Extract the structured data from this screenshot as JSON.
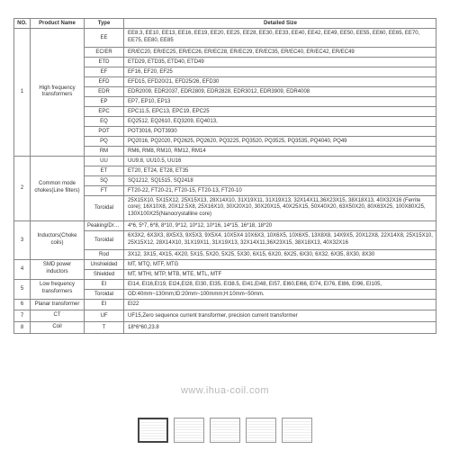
{
  "header": {
    "no": "NO.",
    "name": "Product Name",
    "type": "Type",
    "detail": "Detailed Size"
  },
  "rows": [
    {
      "no": "1",
      "name": "High frequency transformers",
      "types": [
        {
          "type": "EE",
          "detail": "EE8.3, EE10, EE13, EE16, EE19, EE20, EE25, EE28, EE30, EE33, EE40, EE42, EE49, EE50, EE55, EE60, EE65, EE70, EE75, EE80, EE85"
        },
        {
          "type": "EC/ER",
          "detail": "ER/EC20, ER/EC25, ER/EC26, ER/EC28, ER/EC29, ER/EC35, ER/EC40, ER/EC42, ER/EC49"
        },
        {
          "type": "ETD",
          "detail": "ETD29, ETD35, ETD40, ETD49"
        },
        {
          "type": "EF",
          "detail": "EF16, EF20, EF25"
        },
        {
          "type": "EFD",
          "detail": "EFD15, EFD20/21, EFD25/26, EFD30"
        },
        {
          "type": "EDR",
          "detail": "EDR2009, EDR2037, EDR2809, EDR2828, EDR3012, EDR3909, EDR4008"
        },
        {
          "type": "EP",
          "detail": "EP7, EP10, EP13"
        },
        {
          "type": "EPC",
          "detail": "EPC11.5, EPC13, EPC19, EPC25"
        },
        {
          "type": "EQ",
          "detail": "EQ2512, EQ2610, EQ3209, EQ4013,"
        },
        {
          "type": "POT",
          "detail": "POT3016, POT3930"
        },
        {
          "type": "PQ",
          "detail": "PQ2016, PQ2020, PQ2625, PQ2620, PQ3225, PQ3520, PQ3525, PQ3535, PQ4040, PQ49"
        },
        {
          "type": "RM",
          "detail": "RM6, RM8, RM10, RM12, RM14"
        }
      ]
    },
    {
      "no": "2",
      "name": "Common mode chokes(Line filters)",
      "types": [
        {
          "type": "UU",
          "detail": "UU9.8, UU10.5, UU16"
        },
        {
          "type": "ET",
          "detail": "ET20, ET24, ET28, ET35"
        },
        {
          "type": "SQ",
          "detail": "SQ1212, SQ1515, SQ2418"
        },
        {
          "type": "FT",
          "detail": "FT20-22, FT20-21, FT20-15, FT20-13, FT20-10"
        },
        {
          "type": "Toroidal",
          "detail": "25X15X10, 5X15X12, 25X15X13, 28X14X10, 31X19X11, 31X19X13, 32X14X11,36X23X15, 38X18X13, 40X32X16 (Ferrite core); 16X10X8, 20X12.5X8, 25X16X10, 30X20X10, 30X20X15, 40X25X15, 50X40X20, 63X50X20, 80X63X25, 100X80X25, 130X100X25(Nanocrystalline core)"
        }
      ]
    },
    {
      "no": "3",
      "name": "Inductors(Choke coils)",
      "types": [
        {
          "type": "Peaking/Drum",
          "detail": "4*6, 5*7, 6*8, 8*10, 9*12, 10*12, 10*16, 14*15, 16*18, 18*20"
        },
        {
          "type": "Toroidal",
          "detail": "6X3X2, 6X3X3, 8X5X3, 9X5X3, 9X5X4, 10X5X4 10X6X3, 10X6X5, 10X6X5, 13X8X8, 14X9X5, 20X12X8, 22X14X8, 25X15X10, 25X15X12, 28X14X10, 31X19X11, 31X19X13, 32X14X11,36X23X15, 38X18X13, 40X32X16"
        },
        {
          "type": "Rod",
          "detail": "3X12, 3X15, 4X15, 4X20, 5X15, 5X20, 5X25, 5X30, 6X15, 6X20, 6X25, 6X30, 6X32, 6X35, 8X30, 8X30"
        }
      ]
    },
    {
      "no": "4",
      "name": "SMD power inductors",
      "types": [
        {
          "type": "Unshielded",
          "detail": "MT, MTQ, MTF, MTG"
        },
        {
          "type": "Shielded",
          "detail": "MT, MTHI, MTP, MTB, MTE, MTL, MTF"
        }
      ]
    },
    {
      "no": "5",
      "name": "Low frequency transformers",
      "types": [
        {
          "type": "EI",
          "detail": "EI14, EI16,EI19, EI24,EI28, EI30, EI35, EI38.5, EI41,EI48, EI57, EI60,EI66, EI74, EI76, EI86, EI96, EI105,"
        },
        {
          "type": "Toroidal",
          "detail": "OD:40mm~130mm;ID:20mm~100mmm;H:10mm~50mm."
        }
      ]
    },
    {
      "no": "6",
      "name": "Planar transformer",
      "types": [
        {
          "type": "EI",
          "detail": "EI22"
        }
      ]
    },
    {
      "no": "7",
      "name": "CT",
      "types": [
        {
          "type": "UF",
          "detail": "UF15,Zero sequence current transformer, precision current transformer"
        }
      ]
    },
    {
      "no": "8",
      "name": "Coil",
      "types": [
        {
          "type": "T",
          "detail": "18*6*60,23.8"
        }
      ]
    }
  ],
  "footer_url": "www.ihua-coil.com"
}
